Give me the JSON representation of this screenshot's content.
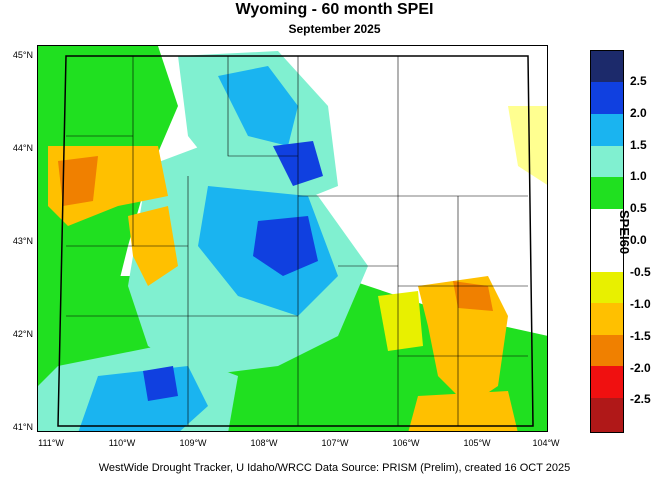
{
  "title": "Wyoming - 60 month SPEI",
  "subtitle": "September 2025",
  "footer": "WestWide Drought Tracker, U Idaho/WRCC Data Source: PRISM (Prelim), created 16 OCT 2025",
  "map": {
    "lat_labels": [
      "45°N",
      "44°N",
      "43°N",
      "42°N",
      "41°N"
    ],
    "lon_labels": [
      "111°W",
      "110°W",
      "109°W",
      "108°W",
      "107°W",
      "106°W",
      "105°W",
      "104°W"
    ]
  },
  "legend": {
    "title": "SPEI60",
    "labels": [
      "2.5",
      "2.0",
      "1.5",
      "1.0",
      "0.5",
      "0.0",
      "-0.5",
      "-1.0",
      "-1.5",
      "-2.0",
      "-2.5"
    ],
    "colors": [
      "#1c2a6b",
      "#1040e0",
      "#1ab4f0",
      "#80f0d0",
      "#20e020",
      "#80f880",
      "#ffffff",
      "#ffff90",
      "#e8f000",
      "#ffc000",
      "#f08000",
      "#f01010",
      "#b01818"
    ]
  }
}
